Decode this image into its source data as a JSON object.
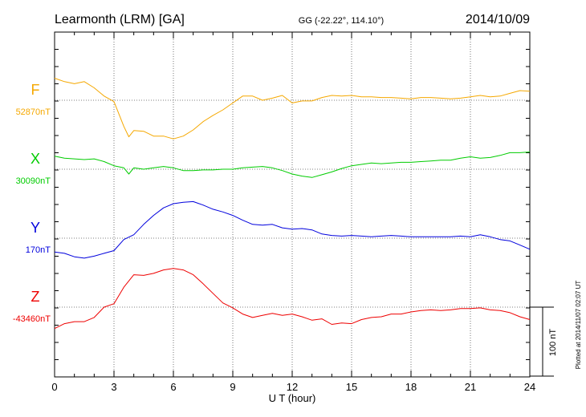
{
  "header": {
    "station": "Learmonth (LRM)  [GA]",
    "coords": "GG (-22.22°, 114.10°)",
    "date": "2014/10/09"
  },
  "footer_note": "Plotted at 2014/11/07 02:07 UT",
  "scale_bar_label": "100 nT",
  "chart_data": {
    "type": "line",
    "xlabel": "U T (hour)",
    "xlim": [
      0,
      24
    ],
    "x_ticks": [
      0,
      3,
      6,
      9,
      12,
      15,
      18,
      21,
      24
    ],
    "x_tick_labels": [
      "0",
      "3",
      "6",
      "9",
      "12",
      "15",
      "18",
      "21",
      "24"
    ],
    "grid": true,
    "scale_nT": 100,
    "series": [
      {
        "name": "F",
        "baseline_label": "52870nT",
        "baseline_nT": 52870,
        "color": "#f5a800",
        "points": [
          [
            0,
            52902
          ],
          [
            0.5,
            52897
          ],
          [
            1,
            52894
          ],
          [
            1.5,
            52897
          ],
          [
            2,
            52888
          ],
          [
            2.5,
            52876
          ],
          [
            3,
            52868
          ],
          [
            3.5,
            52832
          ],
          [
            3.75,
            52817
          ],
          [
            4,
            52826
          ],
          [
            4.5,
            52825
          ],
          [
            5,
            52818
          ],
          [
            5.5,
            52818
          ],
          [
            6,
            52814
          ],
          [
            6.5,
            52818
          ],
          [
            7,
            52827
          ],
          [
            7.5,
            52839
          ],
          [
            8,
            52848
          ],
          [
            8.5,
            52856
          ],
          [
            9,
            52866
          ],
          [
            9.5,
            52876
          ],
          [
            10,
            52876
          ],
          [
            10.5,
            52870
          ],
          [
            11,
            52873
          ],
          [
            11.5,
            52877
          ],
          [
            12,
            52866
          ],
          [
            12.5,
            52869
          ],
          [
            13,
            52869
          ],
          [
            13.5,
            52874
          ],
          [
            14,
            52877
          ],
          [
            14.5,
            52876
          ],
          [
            15,
            52877
          ],
          [
            15.5,
            52875
          ],
          [
            16,
            52875
          ],
          [
            16.5,
            52874
          ],
          [
            17,
            52874
          ],
          [
            17.5,
            52873
          ],
          [
            18,
            52872
          ],
          [
            18.5,
            52874
          ],
          [
            19,
            52874
          ],
          [
            19.5,
            52873
          ],
          [
            20,
            52872
          ],
          [
            20.5,
            52873
          ],
          [
            21,
            52875
          ],
          [
            21.5,
            52877
          ],
          [
            22,
            52875
          ],
          [
            22.5,
            52876
          ],
          [
            23,
            52880
          ],
          [
            23.5,
            52884
          ],
          [
            24,
            52883
          ]
        ]
      },
      {
        "name": "X",
        "baseline_label": "30090nT",
        "baseline_nT": 30090,
        "color": "#00cc00",
        "points": [
          [
            0,
            30109
          ],
          [
            0.5,
            30106
          ],
          [
            1,
            30105
          ],
          [
            1.5,
            30104
          ],
          [
            2,
            30105
          ],
          [
            2.5,
            30101
          ],
          [
            3,
            30095
          ],
          [
            3.5,
            30092
          ],
          [
            3.75,
            30083
          ],
          [
            4,
            30092
          ],
          [
            4.5,
            30090
          ],
          [
            5,
            30092
          ],
          [
            5.5,
            30094
          ],
          [
            6,
            30092
          ],
          [
            6.5,
            30088
          ],
          [
            7,
            30088
          ],
          [
            7.5,
            30089
          ],
          [
            8,
            30089
          ],
          [
            8.5,
            30090
          ],
          [
            9,
            30090
          ],
          [
            9.5,
            30092
          ],
          [
            10,
            30093
          ],
          [
            10.5,
            30094
          ],
          [
            11,
            30092
          ],
          [
            11.5,
            30088
          ],
          [
            12,
            30083
          ],
          [
            12.5,
            30080
          ],
          [
            13,
            30078
          ],
          [
            13.5,
            30082
          ],
          [
            14,
            30086
          ],
          [
            14.5,
            30091
          ],
          [
            15,
            30095
          ],
          [
            15.5,
            30097
          ],
          [
            16,
            30099
          ],
          [
            16.5,
            30098
          ],
          [
            17,
            30099
          ],
          [
            17.5,
            30100
          ],
          [
            18,
            30100
          ],
          [
            18.5,
            30101
          ],
          [
            19,
            30102
          ],
          [
            19.5,
            30103
          ],
          [
            20,
            30103
          ],
          [
            20.5,
            30106
          ],
          [
            21,
            30108
          ],
          [
            21.5,
            30106
          ],
          [
            22,
            30107
          ],
          [
            22.5,
            30110
          ],
          [
            23,
            30114
          ],
          [
            23.5,
            30114
          ],
          [
            24,
            30115
          ]
        ]
      },
      {
        "name": "Y",
        "baseline_label": "170nT",
        "baseline_nT": 170,
        "color": "#0000dd",
        "points": [
          [
            0,
            150
          ],
          [
            0.5,
            148
          ],
          [
            1,
            143
          ],
          [
            1.5,
            141
          ],
          [
            2,
            144
          ],
          [
            2.5,
            148
          ],
          [
            3,
            152
          ],
          [
            3.5,
            168
          ],
          [
            4,
            175
          ],
          [
            4.5,
            190
          ],
          [
            5,
            203
          ],
          [
            5.5,
            214
          ],
          [
            6,
            220
          ],
          [
            6.5,
            222
          ],
          [
            7,
            223
          ],
          [
            7.5,
            218
          ],
          [
            8,
            212
          ],
          [
            8.5,
            208
          ],
          [
            9,
            203
          ],
          [
            9.5,
            196
          ],
          [
            10,
            190
          ],
          [
            10.5,
            189
          ],
          [
            11,
            190
          ],
          [
            11.5,
            185
          ],
          [
            12,
            183
          ],
          [
            12.5,
            184
          ],
          [
            13,
            182
          ],
          [
            13.5,
            176
          ],
          [
            14,
            174
          ],
          [
            14.5,
            173
          ],
          [
            15,
            174
          ],
          [
            15.5,
            173
          ],
          [
            16,
            172
          ],
          [
            16.5,
            173
          ],
          [
            17,
            174
          ],
          [
            17.5,
            173
          ],
          [
            18,
            172
          ],
          [
            18.5,
            172
          ],
          [
            19,
            172
          ],
          [
            19.5,
            172
          ],
          [
            20,
            172
          ],
          [
            20.5,
            173
          ],
          [
            21,
            172
          ],
          [
            21.5,
            175
          ],
          [
            22,
            172
          ],
          [
            22.5,
            168
          ],
          [
            23,
            166
          ],
          [
            23.5,
            160
          ],
          [
            24,
            154
          ]
        ]
      },
      {
        "name": "Z",
        "baseline_label": "-43460nT",
        "baseline_nT": -43460,
        "color": "#ee0000",
        "points": [
          [
            0,
            -43491
          ],
          [
            0.5,
            -43484
          ],
          [
            1,
            -43481
          ],
          [
            1.5,
            -43481
          ],
          [
            2,
            -43475
          ],
          [
            2.5,
            -43460
          ],
          [
            3,
            -43455
          ],
          [
            3.5,
            -43431
          ],
          [
            4,
            -43413
          ],
          [
            4.5,
            -43414
          ],
          [
            5,
            -43411
          ],
          [
            5.5,
            -43406
          ],
          [
            6,
            -43404
          ],
          [
            6.5,
            -43406
          ],
          [
            7,
            -43413
          ],
          [
            7.5,
            -43426
          ],
          [
            8,
            -43440
          ],
          [
            8.5,
            -43454
          ],
          [
            9,
            -43461
          ],
          [
            9.5,
            -43470
          ],
          [
            10,
            -43475
          ],
          [
            10.5,
            -43472
          ],
          [
            11,
            -43469
          ],
          [
            11.5,
            -43472
          ],
          [
            12,
            -43470
          ],
          [
            12.5,
            -43474
          ],
          [
            13,
            -43479
          ],
          [
            13.5,
            -43477
          ],
          [
            14,
            -43485
          ],
          [
            14.5,
            -43483
          ],
          [
            15,
            -43484
          ],
          [
            15.5,
            -43478
          ],
          [
            16,
            -43475
          ],
          [
            16.5,
            -43474
          ],
          [
            17,
            -43470
          ],
          [
            17.5,
            -43470
          ],
          [
            18,
            -43467
          ],
          [
            18.5,
            -43465
          ],
          [
            19,
            -43464
          ],
          [
            19.5,
            -43465
          ],
          [
            20,
            -43464
          ],
          [
            20.5,
            -43462
          ],
          [
            21,
            -43462
          ],
          [
            21.5,
            -43461
          ],
          [
            22,
            -43464
          ],
          [
            22.5,
            -43465
          ],
          [
            23,
            -43468
          ],
          [
            23.5,
            -43474
          ],
          [
            24,
            -43478
          ]
        ]
      }
    ]
  }
}
